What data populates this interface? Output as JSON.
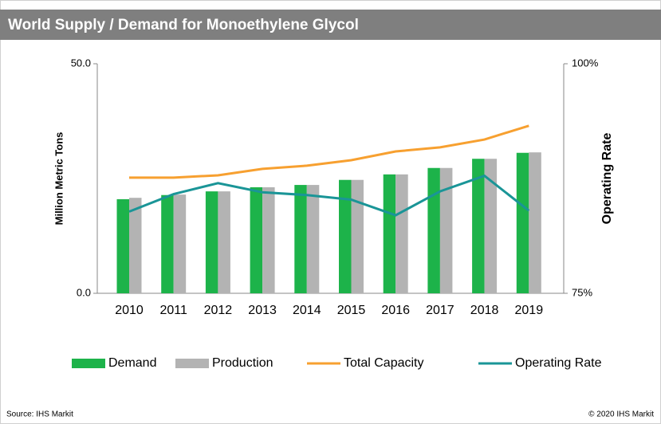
{
  "chart_data": {
    "type": "bar-line",
    "title": "World Supply / Demand for Monoethylene Glycol",
    "ylabel": "Million Metric Tons",
    "y2label": "Operating Rate",
    "source": "Source: IHS Markit",
    "copyright": "© 2020 IHS Markit",
    "categories": [
      "2010",
      "2011",
      "2012",
      "2013",
      "2014",
      "2015",
      "2016",
      "2017",
      "2018",
      "2019"
    ],
    "series": [
      {
        "name": "Demand",
        "type": "bar",
        "color": "#1db34a",
        "values": [
          20.5,
          21.4,
          22.2,
          23.1,
          23.6,
          24.7,
          25.9,
          27.3,
          29.3,
          30.6
        ]
      },
      {
        "name": "Production",
        "type": "bar",
        "color": "#b3b3b3",
        "values": [
          20.8,
          21.5,
          22.2,
          23.1,
          23.6,
          24.7,
          25.9,
          27.3,
          29.3,
          30.7
        ]
      },
      {
        "name": "Total Capacity",
        "type": "line",
        "color": "#f7a030",
        "values": [
          25.2,
          25.2,
          25.7,
          27.1,
          27.8,
          29.0,
          30.9,
          31.8,
          33.5,
          36.5
        ]
      },
      {
        "name": "Operating Rate",
        "type": "line",
        "axis": "y2",
        "color": "#1a9597",
        "values": [
          83.9,
          85.8,
          87.0,
          86.0,
          85.7,
          85.2,
          83.5,
          86.1,
          87.8,
          84.0
        ]
      }
    ],
    "ylim": [
      0,
      50
    ],
    "yticks": [
      {
        "value": 0,
        "label": "0.0"
      },
      {
        "value": 50,
        "label": "50.0"
      }
    ],
    "y2lim": [
      75,
      100
    ],
    "y2ticks": [
      {
        "value": 75,
        "label": "75%"
      },
      {
        "value": 100,
        "label": "100%"
      }
    ]
  }
}
